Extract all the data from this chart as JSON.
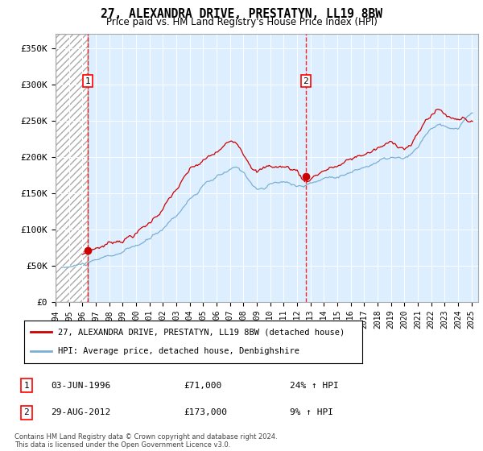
{
  "title": "27, ALEXANDRA DRIVE, PRESTATYN, LL19 8BW",
  "subtitle": "Price paid vs. HM Land Registry's House Price Index (HPI)",
  "ylabel_ticks": [
    "£0",
    "£50K",
    "£100K",
    "£150K",
    "£200K",
    "£250K",
    "£300K",
    "£350K"
  ],
  "ytick_values": [
    0,
    50000,
    100000,
    150000,
    200000,
    250000,
    300000,
    350000
  ],
  "ylim": [
    0,
    370000
  ],
  "xlim_start": 1994.0,
  "xlim_end": 2025.5,
  "sale1_date": 1996.42,
  "sale1_price": 71000,
  "sale1_label": "1",
  "sale2_date": 2012.65,
  "sale2_price": 173000,
  "sale2_label": "2",
  "hpi_color": "#7ab0d4",
  "price_color": "#cc0000",
  "background_color": "#ddeeff",
  "legend_line1": "27, ALEXANDRA DRIVE, PRESTATYN, LL19 8BW (detached house)",
  "legend_line2": "HPI: Average price, detached house, Denbighshire",
  "note1_label": "1",
  "note1_date": "03-JUN-1996",
  "note1_price": "£71,000",
  "note1_hpi": "24% ↑ HPI",
  "note2_label": "2",
  "note2_date": "29-AUG-2012",
  "note2_price": "£173,000",
  "note2_hpi": "9% ↑ HPI",
  "footer": "Contains HM Land Registry data © Crown copyright and database right 2024.\nThis data is licensed under the Open Government Licence v3.0."
}
